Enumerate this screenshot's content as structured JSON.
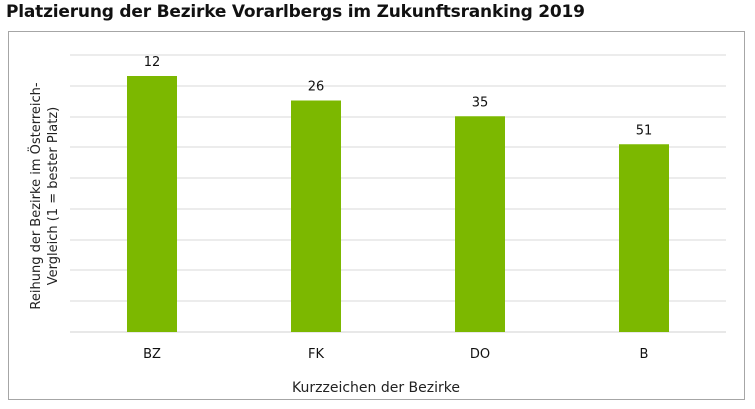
{
  "chart_data": {
    "type": "bar",
    "title": "Platzierung der Bezirke Vorarlbergs im Zukunftsranking 2019",
    "categories": [
      "BZ",
      "FK",
      "DO",
      "B"
    ],
    "values": [
      12,
      26,
      35,
      51
    ],
    "xlabel": "Kurzzeichen der Bezirke",
    "ylabel_lines": [
      "Reihung der Bezirke im Österreich-",
      "Vergleich (1 = bester Platz)"
    ],
    "y_axis_inverted": true,
    "grid": true,
    "bar_color": "#7cb800",
    "grid_color": "#d9d9d9"
  }
}
